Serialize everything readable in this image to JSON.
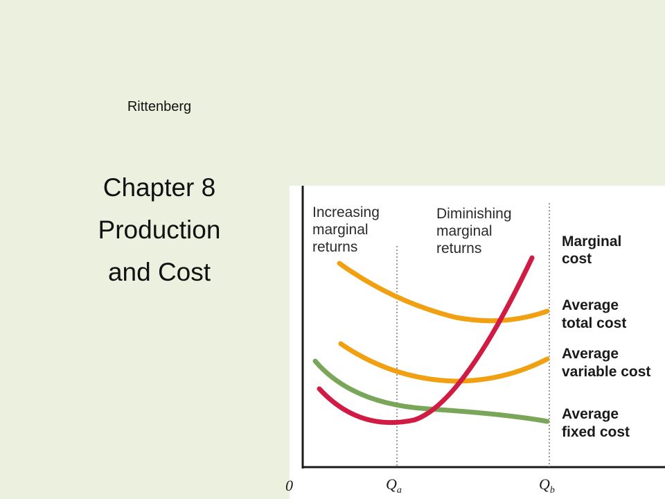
{
  "slide": {
    "author": "Rittenberg",
    "title_lines": [
      "Chapter 8",
      "Production",
      "and Cost"
    ]
  },
  "figure": {
    "region_labels": {
      "left": [
        "Increasing",
        "marginal",
        "returns"
      ],
      "right": [
        "Diminishing",
        "marginal",
        "returns"
      ]
    },
    "curve_labels": {
      "mc": [
        "Marginal",
        "cost"
      ],
      "atc": [
        "Average",
        "total cost"
      ],
      "avc": [
        "Average",
        "variable cost"
      ],
      "afc": [
        "Average",
        "fixed cost"
      ]
    },
    "x_ticks": {
      "origin": "0",
      "qa": "Q",
      "qa_sub": "a",
      "qb": "Q",
      "qb_sub": "b"
    },
    "colors": {
      "mc": "#d01c44",
      "atc": "#f0a010",
      "avc": "#f0a010",
      "afc": "#7aa65a",
      "axis": "#1a1a1a",
      "guide": "#555555"
    }
  }
}
